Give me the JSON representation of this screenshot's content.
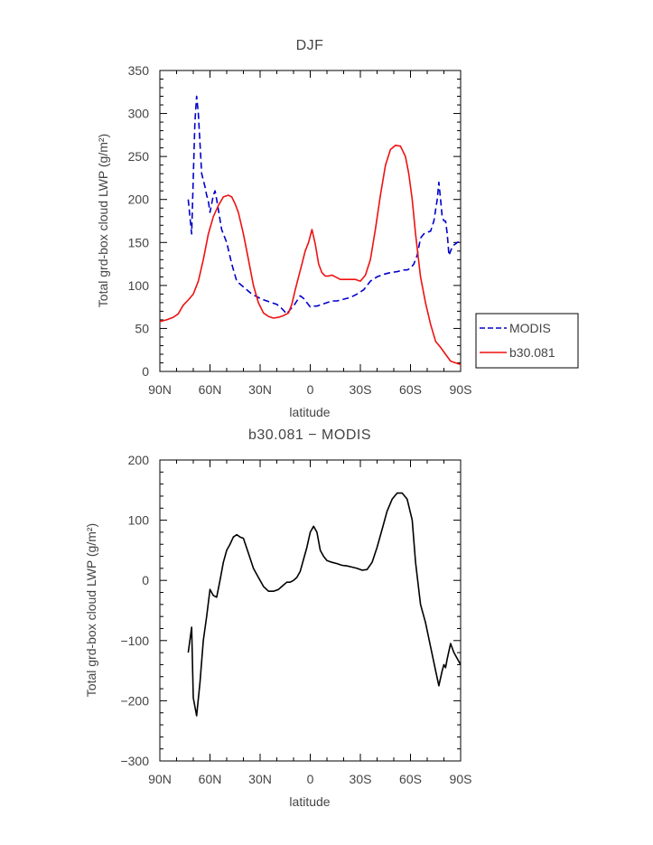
{
  "chart_data": [
    {
      "type": "line",
      "title": "DJF",
      "xlabel": "latitude",
      "ylabel": "Total grd-box cloud LWP (g/m²)",
      "xlim": [
        90,
        -90
      ],
      "ylim": [
        0,
        350
      ],
      "x_ticks": [
        90,
        60,
        30,
        0,
        -30,
        -60,
        -90
      ],
      "x_tick_labels": [
        "90N",
        "60N",
        "30N",
        "0",
        "30S",
        "60S",
        "90S"
      ],
      "y_ticks": [
        0,
        50,
        100,
        150,
        200,
        250,
        300,
        350
      ],
      "y_tick_labels": [
        "0",
        "50",
        "100",
        "150",
        "200",
        "250",
        "300",
        "350"
      ],
      "legend_position": "right",
      "series": [
        {
          "name": "MODIS",
          "color": "#0000cc",
          "dash": "dashed",
          "x": [
            73,
            71,
            69,
            68,
            67,
            65,
            63,
            62,
            61,
            60,
            58,
            57,
            56,
            53,
            50,
            47,
            44,
            41,
            38,
            35,
            32,
            29,
            26,
            23,
            20,
            17,
            14,
            12,
            10,
            8,
            6,
            4,
            2,
            0,
            -2,
            -4,
            -7,
            -10,
            -13,
            -16,
            -20,
            -24,
            -28,
            -32,
            -36,
            -40,
            -44,
            -48,
            -52,
            -56,
            -58,
            -60,
            -62,
            -64,
            -66,
            -68,
            -70,
            -72,
            -74,
            -76,
            -77,
            -78,
            -79,
            -80,
            -81,
            -82,
            -83,
            -84,
            -85,
            -86,
            -88,
            -90
          ],
          "y": [
            200,
            160,
            290,
            320,
            300,
            230,
            215,
            205,
            198,
            185,
            205,
            210,
            200,
            165,
            150,
            125,
            105,
            100,
            95,
            90,
            87,
            84,
            82,
            80,
            78,
            73,
            67,
            72,
            76,
            82,
            88,
            85,
            80,
            75,
            76,
            76,
            78,
            80,
            82,
            82,
            84,
            86,
            90,
            95,
            105,
            110,
            113,
            115,
            116,
            118,
            118,
            120,
            125,
            135,
            155,
            160,
            162,
            163,
            175,
            200,
            220,
            200,
            180,
            175,
            175,
            160,
            135,
            140,
            145,
            147,
            150,
            152
          ]
        },
        {
          "name": "b30.081",
          "color": "#ee1111",
          "dash": "solid",
          "x": [
            90,
            86,
            82,
            79,
            76,
            73,
            70,
            67,
            64,
            61,
            58,
            55,
            52,
            49,
            47,
            45,
            43,
            40,
            37,
            34,
            31,
            28,
            25,
            22,
            19,
            16,
            13,
            11,
            9,
            7,
            5,
            3,
            1,
            -1,
            -3,
            -5,
            -7,
            -9,
            -11,
            -13,
            -15,
            -18,
            -21,
            -24,
            -27,
            -30,
            -33,
            -36,
            -39,
            -42,
            -45,
            -48,
            -51,
            -54,
            -57,
            -59,
            -61,
            -63,
            -66,
            -69,
            -72,
            -75,
            -78,
            -81,
            -84,
            -87,
            -90
          ],
          "y": [
            58,
            60,
            63,
            67,
            77,
            83,
            90,
            105,
            130,
            160,
            180,
            193,
            203,
            205,
            203,
            195,
            185,
            160,
            130,
            100,
            80,
            68,
            64,
            62,
            63,
            65,
            68,
            78,
            95,
            110,
            125,
            140,
            150,
            165,
            148,
            125,
            115,
            111,
            111,
            112,
            110,
            107,
            107,
            107,
            107,
            105,
            112,
            130,
            165,
            205,
            240,
            258,
            263,
            262,
            250,
            230,
            200,
            160,
            110,
            80,
            55,
            35,
            28,
            20,
            12,
            10,
            8
          ]
        }
      ]
    },
    {
      "type": "line",
      "title": "b30.081 − MODIS",
      "xlabel": "latitude",
      "ylabel": "Total grd-box cloud LWP (g/m²)",
      "xlim": [
        90,
        -90
      ],
      "ylim": [
        -300,
        200
      ],
      "x_ticks": [
        90,
        60,
        30,
        0,
        -30,
        -60,
        -90
      ],
      "x_tick_labels": [
        "90N",
        "60N",
        "30N",
        "0",
        "30S",
        "60S",
        "90S"
      ],
      "y_ticks": [
        -300,
        -200,
        -100,
        0,
        100,
        200
      ],
      "y_tick_labels": [
        "−300",
        "−200",
        "−100",
        "0",
        "100",
        "200"
      ],
      "series": [
        {
          "color": "#000000",
          "dash": "solid",
          "x": [
            73,
            71,
            70,
            68,
            66,
            64,
            62,
            60,
            58,
            56,
            54,
            52,
            50,
            48,
            46,
            44,
            42,
            40,
            37,
            34,
            31,
            28,
            25,
            22,
            19,
            17,
            14,
            12,
            10,
            8,
            6,
            4,
            2,
            0,
            -2,
            -4,
            -6,
            -8,
            -10,
            -13,
            -16,
            -19,
            -22,
            -25,
            -28,
            -31,
            -34,
            -37,
            -40,
            -43,
            -46,
            -49,
            -52,
            -55,
            -58,
            -61,
            -63,
            -66,
            -69,
            -72,
            -75,
            -77,
            -79,
            -80,
            -81,
            -82,
            -84,
            -86,
            -88,
            -90
          ],
          "y": [
            -120,
            -78,
            -195,
            -225,
            -170,
            -100,
            -60,
            -15,
            -25,
            -28,
            0,
            30,
            50,
            60,
            72,
            76,
            72,
            70,
            45,
            20,
            5,
            -10,
            -18,
            -18,
            -15,
            -10,
            -3,
            -3,
            0,
            5,
            15,
            35,
            55,
            80,
            90,
            80,
            50,
            40,
            33,
            30,
            28,
            25,
            24,
            22,
            20,
            17,
            18,
            30,
            55,
            85,
            115,
            135,
            145,
            145,
            135,
            100,
            30,
            -40,
            -70,
            -110,
            -150,
            -175,
            -150,
            -140,
            -145,
            -130,
            -105,
            -120,
            -130,
            -140
          ]
        }
      ]
    }
  ]
}
